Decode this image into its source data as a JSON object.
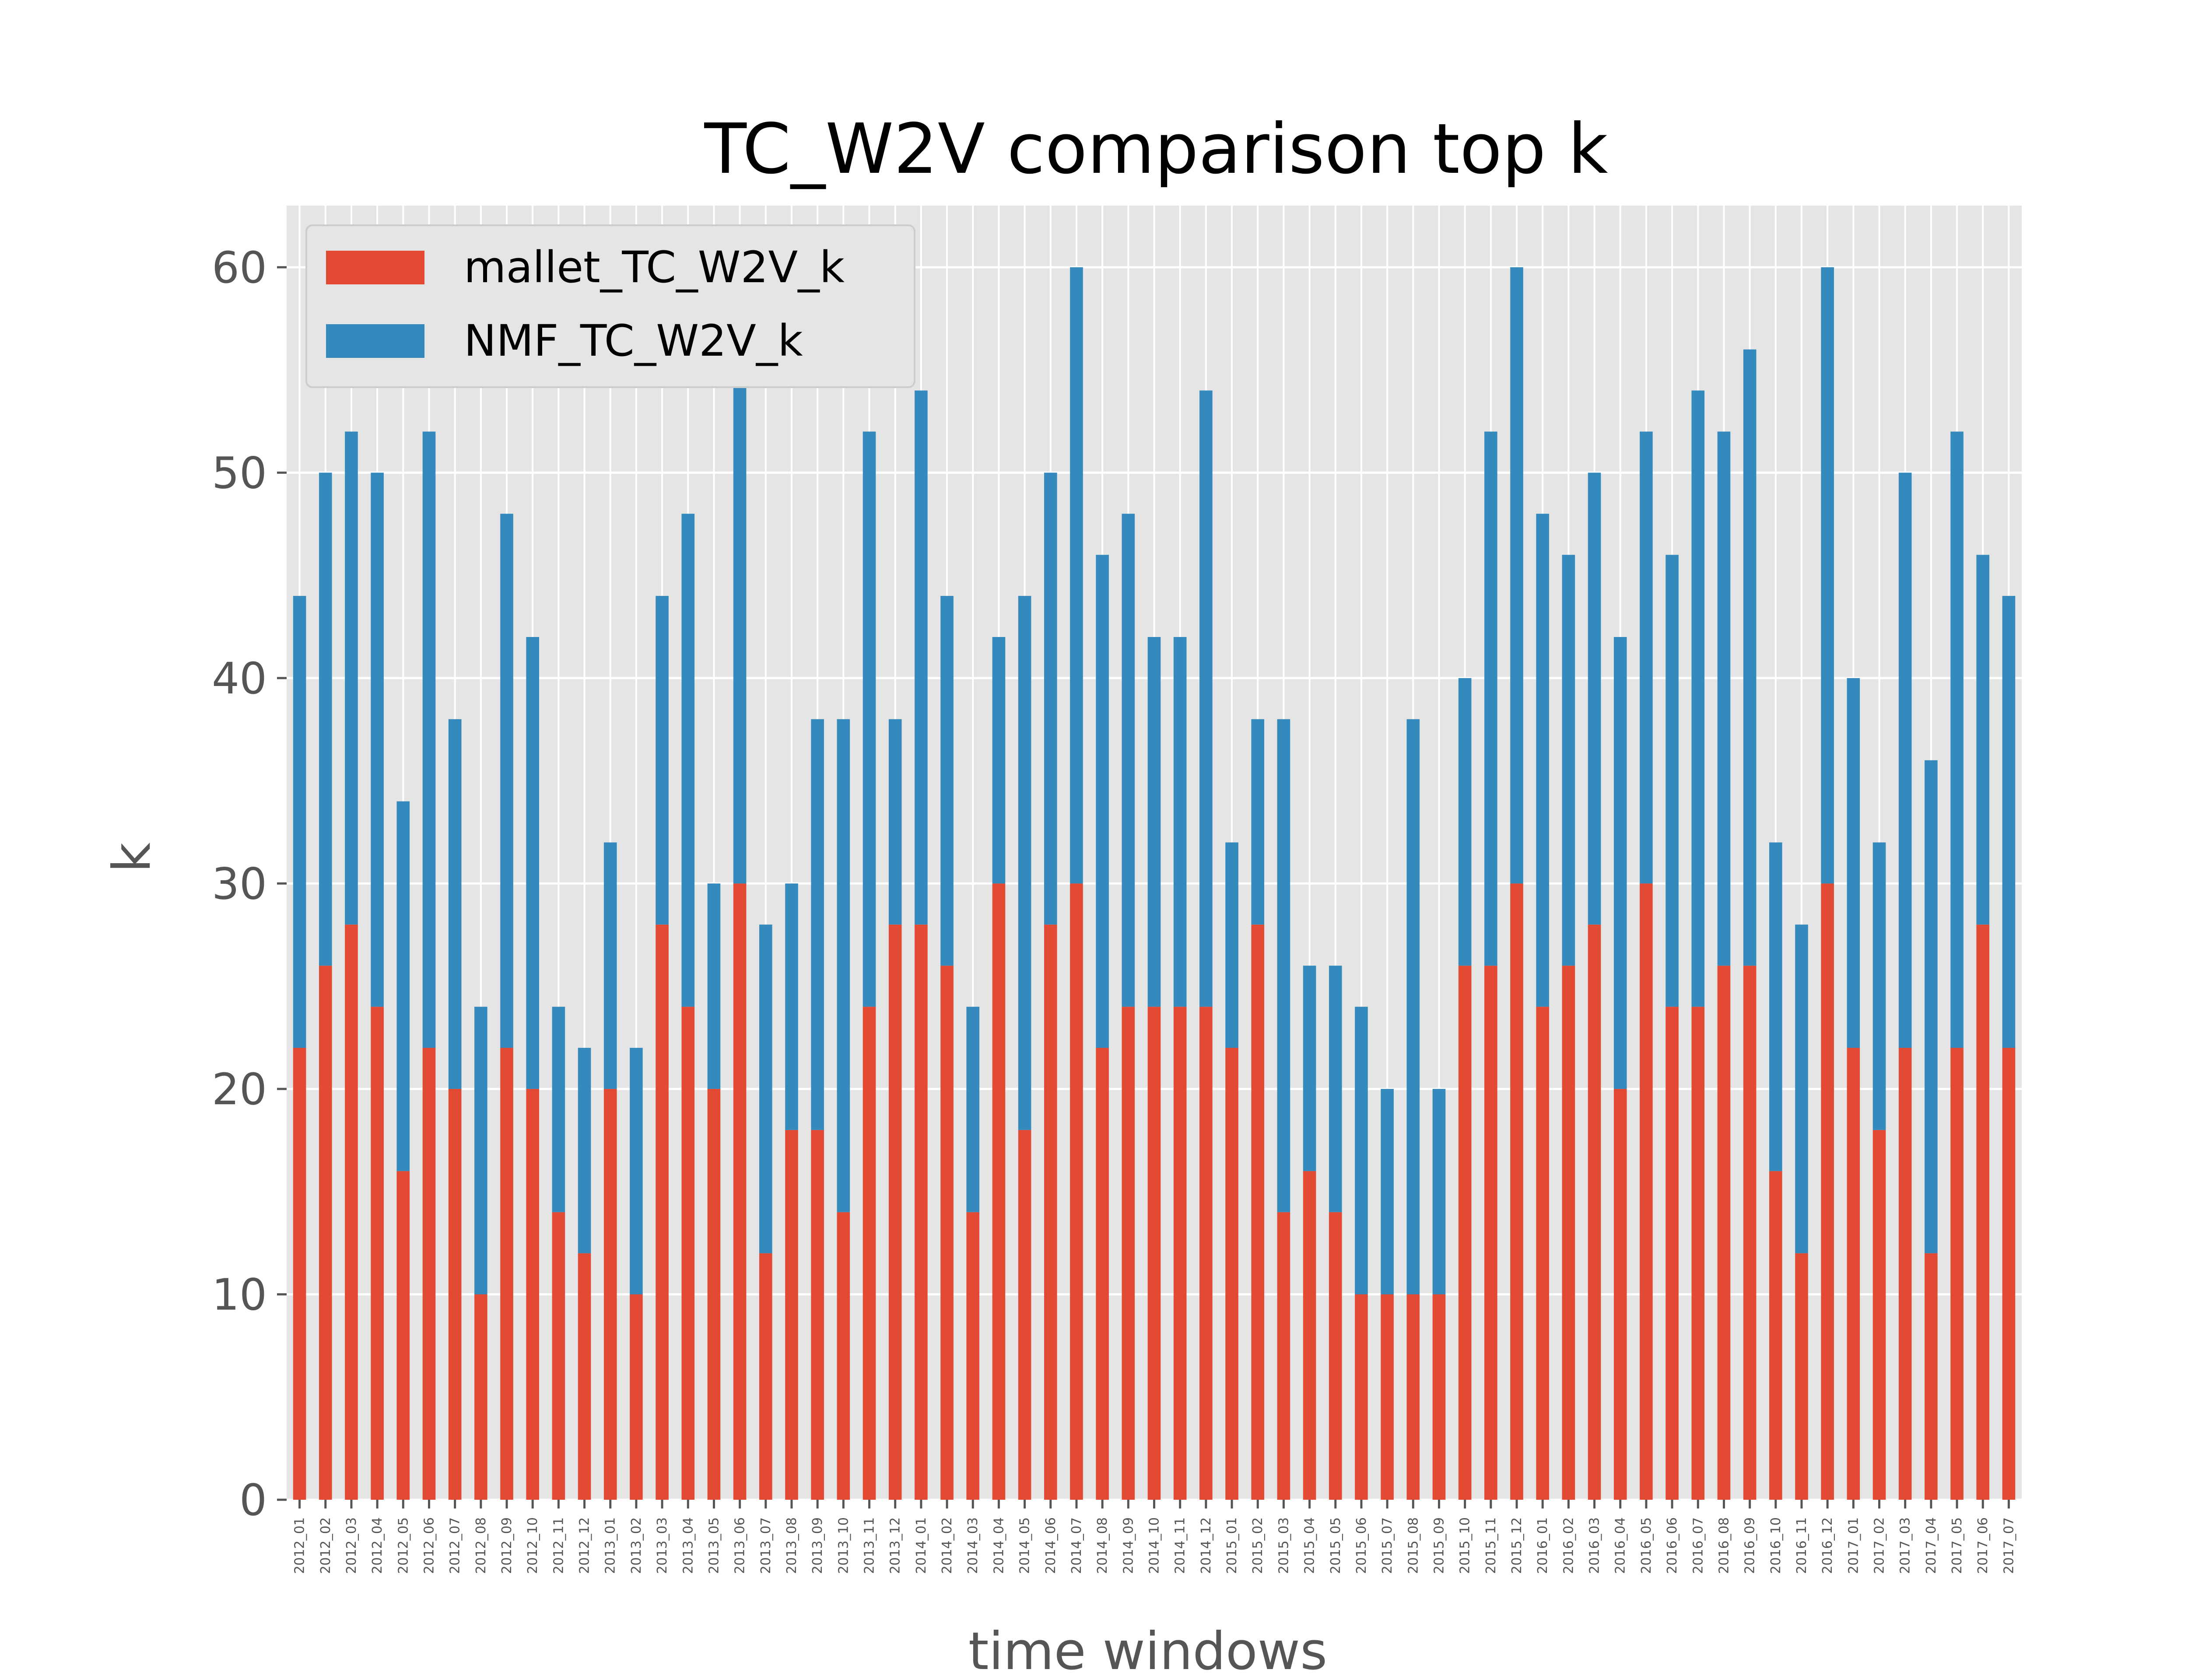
{
  "chart_data": {
    "type": "bar",
    "stacked": true,
    "title": "TC_W2V comparison top k",
    "xlabel": "time windows",
    "ylabel": "k",
    "ylim": [
      0,
      63
    ],
    "yticks": [
      0,
      10,
      20,
      30,
      40,
      50,
      60
    ],
    "grid": true,
    "legend_position": "top-left",
    "categories": [
      "2012_01",
      "2012_02",
      "2012_03",
      "2012_04",
      "2012_05",
      "2012_06",
      "2012_07",
      "2012_08",
      "2012_09",
      "2012_10",
      "2012_11",
      "2012_12",
      "2013_01",
      "2013_02",
      "2013_03",
      "2013_04",
      "2013_05",
      "2013_06",
      "2013_07",
      "2013_08",
      "2013_09",
      "2013_10",
      "2013_11",
      "2013_12",
      "2014_01",
      "2014_02",
      "2014_03",
      "2014_04",
      "2014_05",
      "2014_06",
      "2014_07",
      "2014_08",
      "2014_09",
      "2014_10",
      "2014_11",
      "2014_12",
      "2015_01",
      "2015_02",
      "2015_03",
      "2015_04",
      "2015_05",
      "2015_06",
      "2015_07",
      "2015_08",
      "2015_09",
      "2015_10",
      "2015_11",
      "2015_12",
      "2016_01",
      "2016_02",
      "2016_03",
      "2016_04",
      "2016_05",
      "2016_06",
      "2016_07",
      "2016_08",
      "2016_09",
      "2016_10",
      "2016_11",
      "2016_12",
      "2017_01",
      "2017_02",
      "2017_03",
      "2017_04",
      "2017_05",
      "2017_06",
      "2017_07"
    ],
    "series": [
      {
        "name": "mallet_TC_W2V_k",
        "color": "#E24A33",
        "values": [
          22,
          26,
          28,
          24,
          16,
          22,
          20,
          10,
          22,
          20,
          14,
          12,
          20,
          10,
          28,
          24,
          20,
          30,
          12,
          18,
          18,
          14,
          24,
          28,
          28,
          26,
          14,
          30,
          18,
          28,
          30,
          22,
          24,
          24,
          24,
          24,
          22,
          28,
          14,
          16,
          14,
          10,
          10,
          10,
          10,
          26,
          26,
          30,
          24,
          26,
          28,
          20,
          30,
          24,
          24,
          26,
          26,
          16,
          12,
          30,
          22,
          18,
          22,
          12,
          22,
          28,
          22
        ]
      },
      {
        "name": "NMF_TC_W2V_k",
        "color": "#348ABD",
        "values": [
          22,
          24,
          24,
          26,
          18,
          30,
          18,
          14,
          26,
          22,
          10,
          10,
          12,
          12,
          16,
          24,
          10,
          28,
          16,
          12,
          20,
          24,
          28,
          10,
          26,
          18,
          10,
          12,
          26,
          22,
          30,
          24,
          24,
          18,
          18,
          30,
          10,
          10,
          24,
          10,
          12,
          14,
          10,
          28,
          10,
          14,
          26,
          30,
          24,
          20,
          22,
          22,
          22,
          22,
          30,
          26,
          30,
          16,
          16,
          30,
          18,
          14,
          28,
          24,
          30,
          18,
          22
        ]
      }
    ]
  }
}
